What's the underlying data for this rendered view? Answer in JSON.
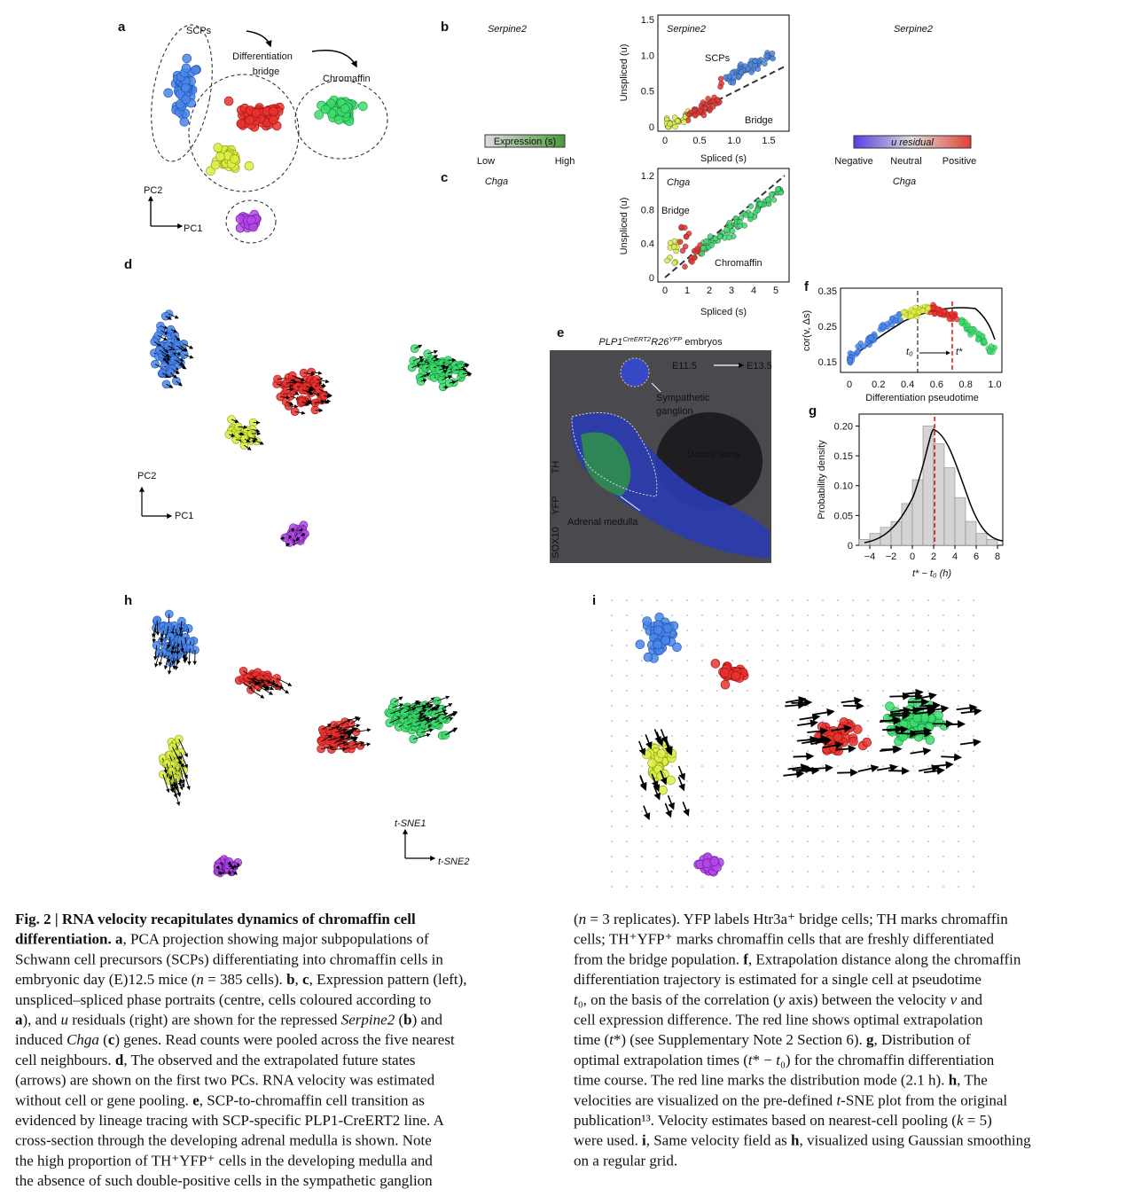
{
  "a": {
    "label": "a",
    "scps": "SCPs",
    "bridge_1": "Differentiation",
    "bridge_2": "bridge",
    "chromaffin": "Chromaffin",
    "pc2": "PC2",
    "pc1": "PC1"
  },
  "b": {
    "label": "b",
    "gene": "Serpine2",
    "colorbar": "Expression (s)",
    "low": "Low",
    "high": "High",
    "ylabel": "Unspliced (u)",
    "xlabel": "Spliced (s)",
    "yticks": [
      "0",
      "0.5",
      "1.0",
      "1.5"
    ],
    "xticks": [
      "0",
      "0.5",
      "1.0",
      "1.5"
    ],
    "scps": "SCPs",
    "bridge": "Bridge",
    "residual": "u residual",
    "negative": "Negative",
    "neutral": "Neutral",
    "positive": "Positive"
  },
  "c": {
    "label": "c",
    "gene": "Chga",
    "ylabel": "Unspliced (u)",
    "xlabel": "Spliced (s)",
    "yticks": [
      "0",
      "0.4",
      "0.8",
      "1.2"
    ],
    "xticks": [
      "0",
      "1",
      "2",
      "3",
      "4",
      "5"
    ],
    "bridge": "Bridge",
    "chromaffin": "Chromaffin"
  },
  "d": {
    "label": "d",
    "pc2": "PC2",
    "pc1": "PC1"
  },
  "e": {
    "label": "e",
    "title": [
      {
        "i": "PLP1"
      },
      {
        "sup": "CreERT2"
      },
      {
        "i": "R26"
      },
      {
        "sup": "YFP"
      },
      " embryos"
    ],
    "time_from": "E11.5",
    "time_to": "E13.5",
    "ganglion": [
      "Sympathetic",
      "ganglion"
    ],
    "aorta": "Dorsal aorta",
    "medulla": "Adrenal medulla",
    "stains": [
      "TH",
      "YFP",
      "SOX10"
    ]
  },
  "f": {
    "label": "f",
    "ylabel": "cor(v, Δs)",
    "xlabel": "Differentiation pseudotime",
    "yticks": [
      "0.15",
      "0.25",
      "0.35"
    ],
    "xticks": [
      "0",
      "0.2",
      "0.4",
      "0.6",
      "0.8",
      "1.0"
    ],
    "t0": "t₀",
    "tstar": "t*"
  },
  "g": {
    "label": "g",
    "ylabel": "Probability density",
    "xlabel": "t* − t₀ (h)",
    "bins": [
      -5,
      -4,
      -3,
      -2,
      -1,
      0,
      1,
      2,
      3,
      4,
      5,
      6,
      7,
      8
    ],
    "values": [
      0.01,
      0.02,
      0.03,
      0.04,
      0.07,
      0.11,
      0.2,
      0.17,
      0.13,
      0.08,
      0.04,
      0.02,
      0.01
    ],
    "xlim": [
      -5,
      8.5
    ],
    "ylim": [
      0,
      0.22
    ],
    "xticks": [
      {
        "value": -4,
        "label": "−4"
      },
      {
        "value": -2,
        "label": "−2"
      },
      0,
      2,
      4,
      6,
      8
    ],
    "yticks": [
      0,
      0.05,
      {
        "value": 0.1,
        "label": "0.10"
      },
      0.15,
      {
        "value": 0.2,
        "label": "0.20"
      }
    ],
    "mode": 2.1
  },
  "h": {
    "label": "h",
    "tsne1": "t-SNE1",
    "tsne2": "t-SNE2"
  },
  "i": {
    "label": "i"
  },
  "caption": {
    "left": [
      [
        {
          "b": "Fig. 2 | RNA velocity recapitulates dynamics of chromaffin cell"
        }
      ],
      [
        {
          "b": "differentiation. a"
        },
        ", PCA projection showing major subpopulations of"
      ],
      [
        "Schwann cell precursors (SCPs) differentiating into chromaffin cells in"
      ],
      [
        "embryonic day (E)12.5 mice (",
        {
          "i": "n"
        },
        " = 385 cells). ",
        {
          "b": "b"
        },
        ", ",
        {
          "b": "c"
        },
        ", Expression pattern (left),"
      ],
      [
        "unspliced–spliced phase portraits (centre, cells coloured according to"
      ],
      [
        {
          "b": "a"
        },
        "), and ",
        {
          "i": "u"
        },
        " residuals (right) are shown for the repressed ",
        {
          "i": "Serpine2"
        },
        " (",
        {
          "b": "b"
        },
        ") and"
      ],
      [
        "induced ",
        {
          "i": "Chga"
        },
        " (",
        {
          "b": "c"
        },
        ") genes. Read counts were pooled across the five nearest"
      ],
      [
        "cell neighbours. ",
        {
          "b": "d"
        },
        ", The observed and the extrapolated future states"
      ],
      [
        "(arrows) are shown on the first two PCs. RNA velocity was estimated"
      ],
      [
        "without cell or gene pooling. ",
        {
          "b": "e"
        },
        ", SCP-to-chromaffin cell transition as"
      ],
      [
        "evidenced by lineage tracing with SCP-specific PLP1-CreERT2 line. A"
      ],
      [
        "cross-section through the developing adrenal medulla is shown. Note"
      ],
      [
        "the high proportion of TH⁺YFP⁺ cells in the developing medulla and"
      ],
      [
        "the absence of such double-positive cells in the sympathetic ganglion"
      ]
    ],
    "right": [
      [
        "(",
        {
          "i": "n"
        },
        " = 3 replicates). YFP labels Htr3a⁺ bridge cells; TH marks chromaffin"
      ],
      [
        "cells; TH⁺YFP⁺ marks chromaffin cells that are freshly differentiated"
      ],
      [
        "from the bridge population. ",
        {
          "b": "f"
        },
        ", Extrapolation distance along the chromaffin"
      ],
      [
        "differentiation trajectory is estimated for a single cell at pseudotime"
      ],
      [
        {
          "i": "t"
        },
        "₀, on the basis of the correlation (",
        {
          "i": "y"
        },
        " axis) between the velocity ",
        {
          "i": "v"
        },
        " and"
      ],
      [
        "cell expression difference. The red line shows optimal extrapolation"
      ],
      [
        "time (",
        {
          "i": "t"
        },
        "*) (see Supplementary Note 2 Section 6). ",
        {
          "b": "g"
        },
        ", Distribution of"
      ],
      [
        "optimal extrapolation times (",
        {
          "i": "t"
        },
        "* − ",
        {
          "i": "t"
        },
        "₀) for the chromaffin differentiation"
      ],
      [
        "time course. The red line marks the distribution mode (2.1 h). ",
        {
          "b": "h"
        },
        ", The"
      ],
      [
        "velocities are visualized on the pre-defined ",
        {
          "i": "t"
        },
        "-SNE plot from the original"
      ],
      [
        "publication¹³. Velocity estimates based on nearest-cell pooling (",
        {
          "i": "k"
        },
        " = 5)"
      ],
      [
        "were used. ",
        {
          "b": "i"
        },
        ", Same velocity field as ",
        {
          "b": "h"
        },
        ", visualized using Gaussian smoothing"
      ],
      [
        "on a regular grid."
      ]
    ]
  }
}
